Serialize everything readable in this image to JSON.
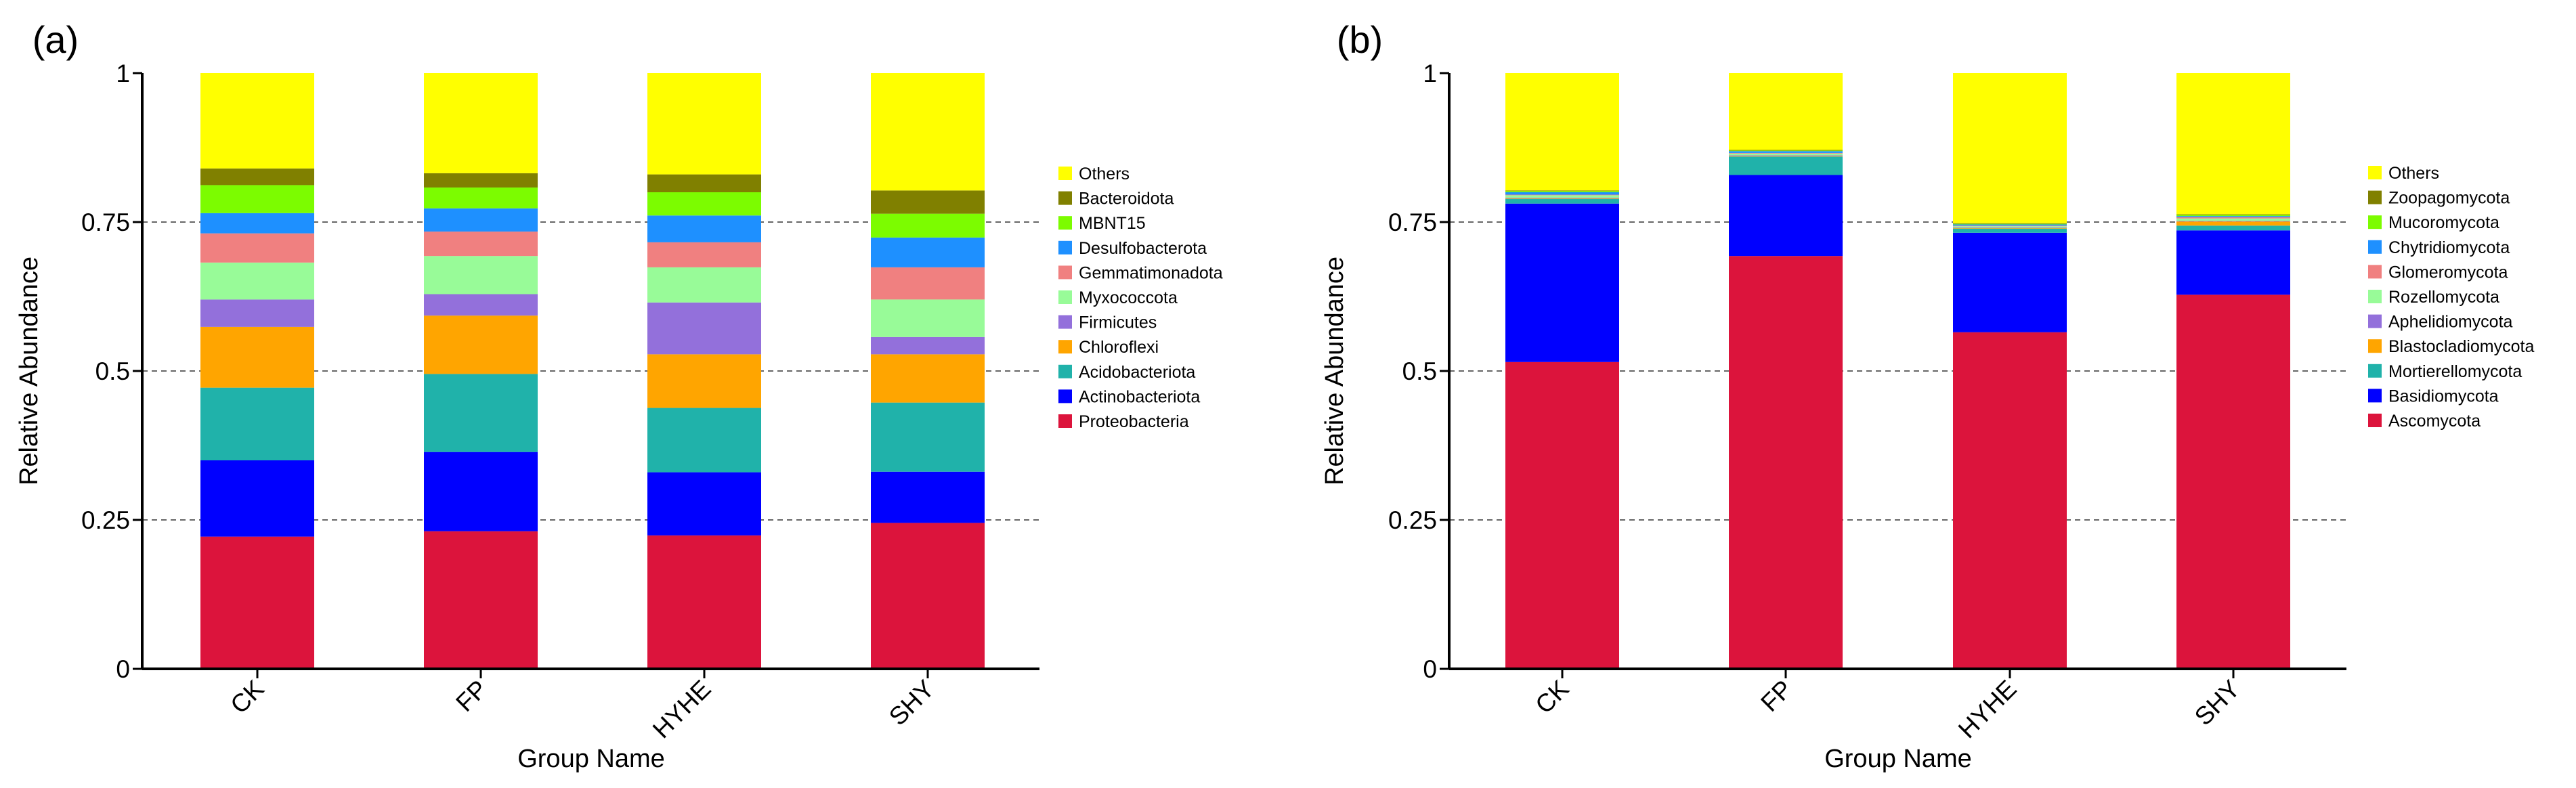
{
  "chart_data": [
    {
      "type": "bar",
      "stacked": true,
      "panel_label": "(a)",
      "xlabel": "Group Name",
      "ylabel": "Relative Abundance",
      "ylim": [
        0,
        1
      ],
      "yticks": [
        "0",
        "0.25",
        "0.5",
        "0.75",
        "1"
      ],
      "gridlines": [
        0.25,
        0.5,
        0.75
      ],
      "legend_position": "right",
      "categories": [
        "CK",
        "FP",
        "HYHE",
        "SHY"
      ],
      "series": [
        {
          "name": "Proteobacteria",
          "color": "#DC143C",
          "values": [
            0.222,
            0.231,
            0.224,
            0.245
          ]
        },
        {
          "name": "Actinobacteriota",
          "color": "#0000FF",
          "values": [
            0.128,
            0.133,
            0.106,
            0.086
          ]
        },
        {
          "name": "Acidobacteriota",
          "color": "#20B2AA",
          "values": [
            0.122,
            0.131,
            0.108,
            0.116
          ]
        },
        {
          "name": "Chloroflexi",
          "color": "#FFA500",
          "values": [
            0.102,
            0.098,
            0.09,
            0.081
          ]
        },
        {
          "name": "Firmicutes",
          "color": "#9370DB",
          "values": [
            0.046,
            0.036,
            0.087,
            0.029
          ]
        },
        {
          "name": "Myxococcota",
          "color": "#98FB98",
          "values": [
            0.062,
            0.064,
            0.059,
            0.063
          ]
        },
        {
          "name": "Gemmatimonadota",
          "color": "#F08080",
          "values": [
            0.049,
            0.041,
            0.042,
            0.054
          ]
        },
        {
          "name": "Desulfobacterota",
          "color": "#1E90FF",
          "values": [
            0.034,
            0.039,
            0.045,
            0.05
          ]
        },
        {
          "name": "MBNT15",
          "color": "#7CFC00",
          "values": [
            0.047,
            0.035,
            0.039,
            0.04
          ]
        },
        {
          "name": "Bacteroidota",
          "color": "#808000",
          "values": [
            0.028,
            0.024,
            0.03,
            0.039
          ]
        },
        {
          "name": "Others",
          "color": "#FFFF00",
          "values": [
            0.16,
            0.168,
            0.17,
            0.197
          ]
        }
      ]
    },
    {
      "type": "bar",
      "stacked": true,
      "panel_label": "(b)",
      "xlabel": "Group Name",
      "ylabel": "Relative Abundance",
      "ylim": [
        0,
        1
      ],
      "yticks": [
        "0",
        "0.25",
        "0.5",
        "0.75",
        "1"
      ],
      "gridlines": [
        0.25,
        0.5,
        0.75
      ],
      "legend_position": "right",
      "categories": [
        "CK",
        "FP",
        "HYHE",
        "SHY"
      ],
      "series": [
        {
          "name": "Ascomycota",
          "color": "#DC143C",
          "values": [
            0.515,
            0.693,
            0.565,
            0.628
          ]
        },
        {
          "name": "Basidiomycota",
          "color": "#0000FF",
          "values": [
            0.266,
            0.136,
            0.167,
            0.108
          ]
        },
        {
          "name": "Mortierellomycota",
          "color": "#20B2AA",
          "values": [
            0.008,
            0.031,
            0.007,
            0.008
          ]
        },
        {
          "name": "Blastocladiomycota",
          "color": "#FFA500",
          "values": [
            0.001,
            0.001,
            0.001,
            0.007
          ]
        },
        {
          "name": "Aphelidiomycota",
          "color": "#9370DB",
          "values": [
            0.001,
            0.001,
            0.001,
            0.001
          ]
        },
        {
          "name": "Rozellomycota",
          "color": "#98FB98",
          "values": [
            0.004,
            0.003,
            0.002,
            0.004
          ]
        },
        {
          "name": "Glomeromycota",
          "color": "#F08080",
          "values": [
            0.001,
            0.001,
            0.001,
            0.002
          ]
        },
        {
          "name": "Chytridiomycota",
          "color": "#1E90FF",
          "values": [
            0.004,
            0.003,
            0.002,
            0.002
          ]
        },
        {
          "name": "Mucoromycota",
          "color": "#7CFC00",
          "values": [
            0.002,
            0.001,
            0.001,
            0.002
          ]
        },
        {
          "name": "Zoopagomycota",
          "color": "#808000",
          "values": [
            0.001,
            0.001,
            0.001,
            0.001
          ]
        },
        {
          "name": "Others",
          "color": "#FFFF00",
          "values": [
            0.197,
            0.129,
            0.252,
            0.237
          ]
        }
      ]
    }
  ]
}
